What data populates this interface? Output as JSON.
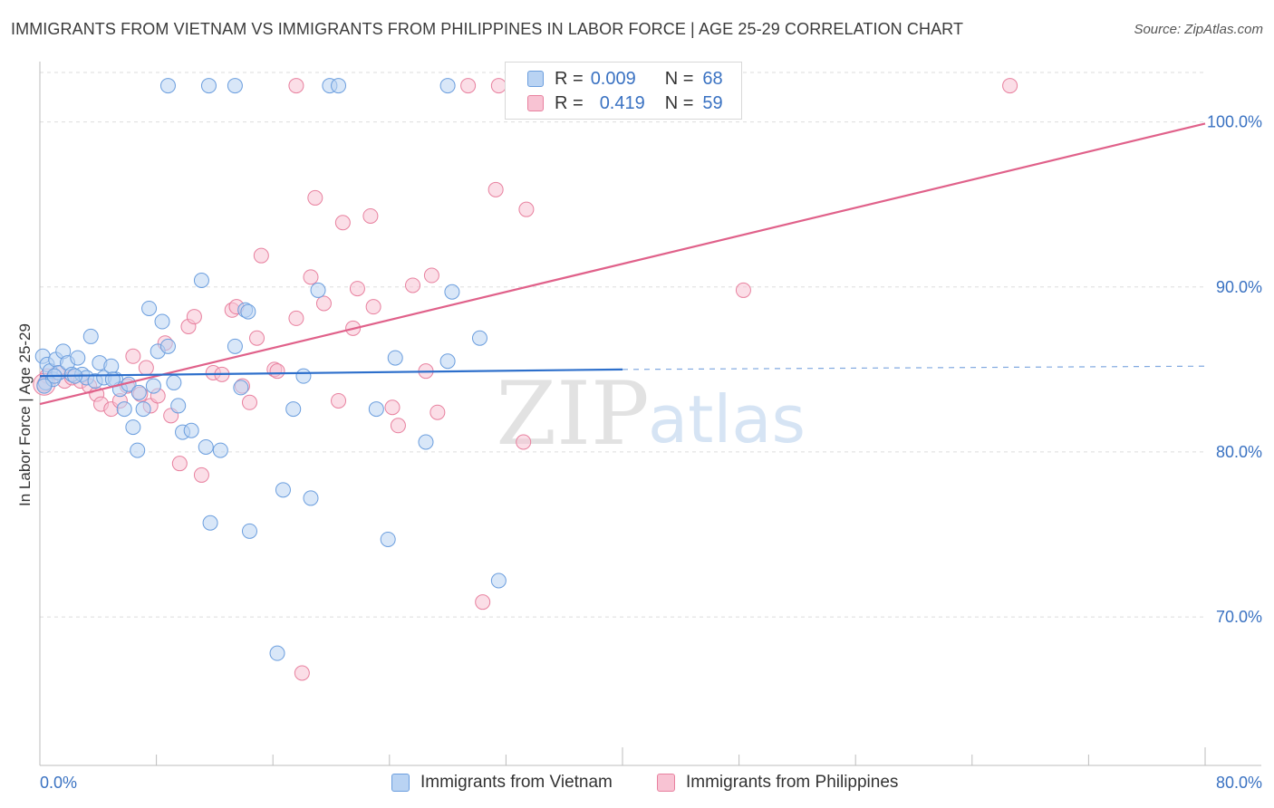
{
  "header": {
    "title": "IMMIGRANTS FROM VIETNAM VS IMMIGRANTS FROM PHILIPPINES IN LABOR FORCE | AGE 25-29 CORRELATION CHART",
    "source": "Source: ZipAtlas.com"
  },
  "legend": {
    "vietnam": {
      "r_label": "R =",
      "r_value": "0.009",
      "n_label": "N =",
      "n_value": "68"
    },
    "philippines": {
      "r_label": "R =",
      "r_value": "0.419",
      "n_label": "N =",
      "n_value": "59"
    }
  },
  "watermark": {
    "zip": "ZIP",
    "atlas": "atlas"
  },
  "colors": {
    "vietnam_fill": "#b9d3f3",
    "vietnam_stroke": "#6b9ede",
    "vietnam_line": "#2d6fcb",
    "philippines_fill": "#f8c3d3",
    "philippines_stroke": "#e8819f",
    "philippines_line": "#e0618a",
    "tick_label": "#3a72c2",
    "grid": "#dddddd"
  },
  "chart_data": {
    "type": "scatter",
    "title": "IMMIGRANTS FROM VIETNAM VS IMMIGRANTS FROM PHILIPPINES IN LABOR FORCE | AGE 25-29 CORRELATION CHART",
    "xlabel": "",
    "ylabel": "In Labor Force | Age 25-29",
    "xlim": [
      0,
      80
    ],
    "ylim": [
      61,
      103
    ],
    "x_tick_labels": [
      "0.0%",
      "80.0%"
    ],
    "y_ticks": [
      70,
      80,
      90,
      100
    ],
    "y_tick_labels": [
      "70.0%",
      "80.0%",
      "90.0%",
      "100.0%"
    ],
    "grid": true,
    "legend_position": "bottom-center",
    "series": [
      {
        "name": "Immigrants from Vietnam",
        "R": 0.009,
        "N": 68,
        "trend": {
          "x": [
            0,
            40
          ],
          "y": [
            84.6,
            85.0
          ],
          "dashed_to": [
            80,
            85.2
          ]
        },
        "points": [
          [
            0.2,
            85.8
          ],
          [
            0.4,
            84.2
          ],
          [
            0.5,
            85.3
          ],
          [
            0.7,
            84.9
          ],
          [
            0.9,
            84.4
          ],
          [
            1.1,
            85.6
          ],
          [
            1.3,
            84.8
          ],
          [
            1.6,
            86.1
          ],
          [
            1.9,
            85.4
          ],
          [
            2.2,
            84.7
          ],
          [
            2.6,
            85.7
          ],
          [
            2.9,
            84.7
          ],
          [
            3.2,
            84.5
          ],
          [
            3.5,
            87.0
          ],
          [
            3.8,
            84.3
          ],
          [
            4.1,
            85.4
          ],
          [
            4.4,
            84.5
          ],
          [
            4.9,
            85.2
          ],
          [
            5.2,
            84.4
          ],
          [
            5.5,
            83.8
          ],
          [
            5.8,
            82.6
          ],
          [
            6.1,
            84.1
          ],
          [
            6.4,
            81.5
          ],
          [
            6.7,
            80.1
          ],
          [
            7.1,
            82.6
          ],
          [
            7.5,
            88.7
          ],
          [
            7.8,
            84.0
          ],
          [
            8.1,
            86.1
          ],
          [
            8.4,
            87.9
          ],
          [
            8.8,
            86.4
          ],
          [
            9.2,
            84.2
          ],
          [
            9.5,
            82.8
          ],
          [
            9.8,
            81.2
          ],
          [
            10.4,
            81.3
          ],
          [
            11.1,
            90.4
          ],
          [
            11.4,
            80.3
          ],
          [
            11.7,
            75.7
          ],
          [
            12.4,
            80.1
          ],
          [
            13.4,
            86.4
          ],
          [
            13.8,
            83.9
          ],
          [
            14.1,
            88.6
          ],
          [
            14.3,
            88.5
          ],
          [
            14.4,
            75.2
          ],
          [
            16.7,
            77.7
          ],
          [
            17.4,
            82.6
          ],
          [
            18.1,
            84.6
          ],
          [
            18.6,
            77.2
          ],
          [
            19.1,
            89.8
          ],
          [
            23.1,
            82.6
          ],
          [
            23.9,
            74.7
          ],
          [
            24.4,
            85.7
          ],
          [
            26.5,
            80.6
          ],
          [
            28.0,
            85.5
          ],
          [
            28.3,
            89.7
          ],
          [
            30.2,
            86.9
          ],
          [
            31.5,
            72.2
          ],
          [
            16.3,
            67.8
          ],
          [
            8.8,
            102.2
          ],
          [
            11.6,
            102.2
          ],
          [
            13.4,
            102.2
          ],
          [
            19.9,
            102.2
          ],
          [
            20.5,
            102.2
          ],
          [
            28.0,
            102.2
          ],
          [
            1.0,
            84.6
          ],
          [
            2.4,
            84.6
          ],
          [
            5.0,
            84.4
          ],
          [
            6.8,
            83.6
          ],
          [
            0.3,
            84.0
          ]
        ]
      },
      {
        "name": "Immigrants from Philippines",
        "R": 0.419,
        "N": 59,
        "trend": {
          "x": [
            0,
            80
          ],
          "y": [
            82.9,
            99.9
          ]
        },
        "points": [
          [
            0.3,
            84.1
          ],
          [
            0.5,
            84.6
          ],
          [
            1.2,
            84.8
          ],
          [
            1.7,
            84.3
          ],
          [
            2.2,
            84.5
          ],
          [
            2.8,
            84.3
          ],
          [
            3.4,
            84.0
          ],
          [
            3.9,
            83.5
          ],
          [
            4.2,
            82.9
          ],
          [
            4.9,
            82.6
          ],
          [
            5.5,
            83.1
          ],
          [
            6.0,
            84.0
          ],
          [
            6.4,
            85.8
          ],
          [
            6.9,
            83.5
          ],
          [
            7.3,
            85.1
          ],
          [
            7.6,
            82.8
          ],
          [
            8.1,
            83.4
          ],
          [
            8.6,
            86.6
          ],
          [
            9.0,
            82.2
          ],
          [
            9.6,
            79.3
          ],
          [
            10.2,
            87.6
          ],
          [
            10.6,
            88.2
          ],
          [
            11.1,
            78.6
          ],
          [
            11.9,
            84.8
          ],
          [
            12.5,
            84.7
          ],
          [
            13.2,
            88.6
          ],
          [
            13.5,
            88.8
          ],
          [
            13.9,
            84.0
          ],
          [
            14.4,
            83.0
          ],
          [
            14.9,
            86.9
          ],
          [
            15.2,
            91.9
          ],
          [
            16.1,
            85.0
          ],
          [
            16.3,
            84.9
          ],
          [
            17.6,
            88.1
          ],
          [
            18.0,
            66.6
          ],
          [
            18.6,
            90.6
          ],
          [
            18.9,
            95.4
          ],
          [
            19.5,
            89.0
          ],
          [
            20.5,
            83.1
          ],
          [
            20.8,
            93.9
          ],
          [
            21.5,
            87.5
          ],
          [
            21.8,
            89.9
          ],
          [
            22.7,
            94.3
          ],
          [
            22.9,
            88.8
          ],
          [
            24.2,
            82.7
          ],
          [
            24.6,
            81.6
          ],
          [
            25.6,
            90.1
          ],
          [
            26.5,
            84.9
          ],
          [
            26.9,
            90.7
          ],
          [
            27.3,
            82.4
          ],
          [
            29.4,
            102.2
          ],
          [
            30.4,
            70.9
          ],
          [
            31.3,
            95.9
          ],
          [
            31.5,
            102.2
          ],
          [
            33.2,
            80.6
          ],
          [
            33.4,
            94.7
          ],
          [
            48.3,
            89.8
          ],
          [
            66.6,
            102.2
          ],
          [
            17.6,
            102.2
          ]
        ]
      }
    ]
  },
  "bottom_legend": {
    "vietnam_label": "Immigrants from Vietnam",
    "philippines_label": "Immigrants from Philippines"
  }
}
